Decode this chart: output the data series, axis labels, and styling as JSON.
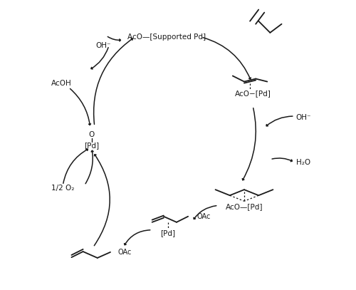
{
  "bg_color": "#ffffff",
  "fg_color": "#1a1a1a",
  "figsize": [
    5.0,
    4.07
  ],
  "dpi": 100,
  "labels": {
    "supported_pd": "AcO—[Supported Pd]",
    "aco_pd_right": "AcO−[Pd]",
    "aco_pd_bottom": "AcO—[Pd]",
    "o_label": "O",
    "pd_left": "[Pd]",
    "oh_topleft": "OH⁻",
    "oh_right": "OH⁻",
    "acoh": "AcOH",
    "h2o": "H₂O",
    "half_o2": "1/2 O₂",
    "oac_bottom": "OAc",
    "oac_product": "OAc",
    "pd_bottom": "[Pd]"
  },
  "font_size": 7.5,
  "small_font": 7
}
